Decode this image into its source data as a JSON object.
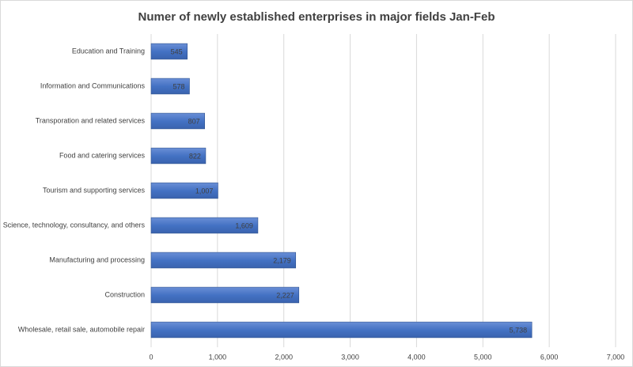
{
  "chart_data": {
    "type": "hbar",
    "title": "Numer of newly established enterprises in major fields Jan-Feb",
    "categories": [
      "Education and Training",
      "Information and Communications",
      "Transporation and related services",
      "Food and catering services",
      "Tourism and supporting services",
      "Science, technology, consultancy, and others",
      "Manufacturing and processing",
      "Construction",
      "Wholesale, retail sale, automobile repair"
    ],
    "values": [
      545,
      578,
      807,
      822,
      1007,
      1609,
      2179,
      2227,
      5738
    ],
    "value_labels": [
      "545",
      "578",
      "807",
      "822",
      "1,007",
      "1,609",
      "2,179",
      "2,227",
      "5,738"
    ],
    "color": "#4472c4",
    "xlim": [
      0,
      7000
    ],
    "xticks": [
      0,
      {
        "value": 1000,
        "label": "1,000"
      },
      {
        "value": 2000,
        "label": "2,000"
      },
      {
        "value": 3000,
        "label": "3,000"
      },
      {
        "value": 4000,
        "label": "4,000"
      },
      {
        "value": 5000,
        "label": "5,000"
      },
      {
        "value": 6000,
        "label": "6,000"
      },
      {
        "value": 7000,
        "label": "7,000"
      }
    ],
    "grid": true
  }
}
